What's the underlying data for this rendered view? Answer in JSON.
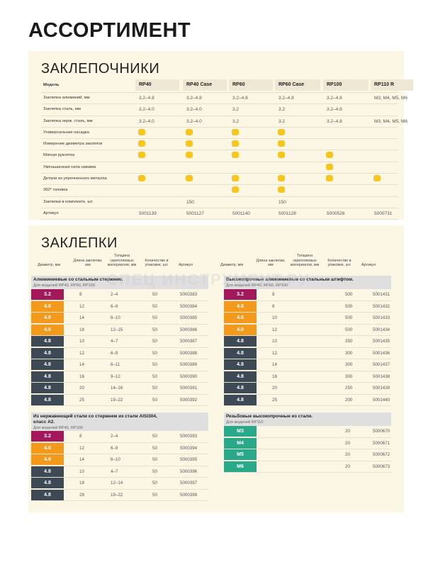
{
  "page_title": "АССОРТИМЕНТ",
  "riveters": {
    "title": "ЗАКЛЕПОЧНИКИ",
    "header_label": "Модель",
    "models": [
      "RP40",
      "RP40 Case",
      "RP60",
      "RP60 Case",
      "RP100",
      "RP110 R"
    ],
    "rows": [
      {
        "label": "Заклепка алюминий, мм",
        "values": [
          "3.2–4.8",
          "3.2–4.8",
          "3.2–4.8",
          "3.2–4.8",
          "3.2–4.8",
          "M3, M4, M5, M6"
        ]
      },
      {
        "label": "Заклепка сталь, мм",
        "values": [
          "3.2–4.0",
          "3.2–4.0",
          "3.2",
          "3.2",
          "3.2–4.8",
          ""
        ]
      },
      {
        "label": "Заклепка нерж. сталь, мм",
        "values": [
          "3.2–4.0",
          "3.2–4.0",
          "3.2",
          "3.2",
          "3.2–4.8",
          "M3, M4, M5, M6"
        ]
      },
      {
        "label": "Универсальная насадка",
        "dots": [
          true,
          true,
          true,
          true,
          false,
          false
        ]
      },
      {
        "label": "Измерение диаметра заклепок",
        "dots": [
          true,
          true,
          true,
          true,
          false,
          false
        ]
      },
      {
        "label": "Мягкая рукоятка",
        "dots": [
          true,
          true,
          true,
          true,
          true,
          false
        ]
      },
      {
        "label": "Уменьшенная сила нажима",
        "dots": [
          false,
          false,
          false,
          false,
          true,
          false
        ]
      },
      {
        "label": "Детали из упрочненного металла",
        "dots": [
          true,
          true,
          true,
          true,
          true,
          true
        ]
      },
      {
        "label": "360° головка",
        "dots": [
          false,
          false,
          true,
          true,
          false,
          false
        ]
      },
      {
        "label": "Заклепки в комплекте, шт.",
        "values": [
          "",
          "150",
          "",
          "150",
          "",
          ""
        ]
      },
      {
        "label": "Артикул",
        "values": [
          "5001139",
          "5001127",
          "5001140",
          "5001128",
          "5000526",
          "5000731"
        ]
      }
    ],
    "dot_color": "#f8c51e"
  },
  "rivets": {
    "title": "ЗАКЛЕПКИ",
    "headers": [
      "Диаметр, мм",
      "Длина заклепки, мм",
      "Толщина скрепляемых материалов, мм",
      "Количество в упаковке, шт.",
      "Артикул"
    ],
    "headers_right": [
      "Диаметр, мм",
      "Длина заклепки, мм",
      "Толщина скрепляемых материалов, мм",
      "Количество в упаковке, шт.",
      "Артикул"
    ],
    "colors": {
      "3.2": "#a3185a",
      "4.0": "#f39a1d",
      "4.8": "#3d4a55",
      "thread": "#2aa88a"
    },
    "left_top": {
      "title": "Алюминиевые со стальным стержнем.",
      "subtitle": "Для моделей RP40, RP60, RP100",
      "rows": [
        [
          "3.2",
          "8",
          "2–4",
          "50",
          "5000383"
        ],
        [
          "4.0",
          "12",
          "6–9",
          "50",
          "5000384"
        ],
        [
          "4.0",
          "14",
          "8–10",
          "50",
          "5000385"
        ],
        [
          "4.0",
          "18",
          "12–15",
          "50",
          "5000386"
        ],
        [
          "4.8",
          "10",
          "4–7",
          "50",
          "5000387"
        ],
        [
          "4.8",
          "12",
          "6–9",
          "50",
          "5000388"
        ],
        [
          "4.8",
          "14",
          "8–11",
          "50",
          "5000389"
        ],
        [
          "4.8",
          "16",
          "9–12",
          "50",
          "5000390"
        ],
        [
          "4.8",
          "20",
          "14–16",
          "50",
          "5000391"
        ],
        [
          "4.8",
          "25",
          "19–22",
          "50",
          "5000392"
        ]
      ]
    },
    "right_top": {
      "title": "Высокопрочные алюминиевые со стальным штифтом.",
      "subtitle": "Для моделей RP40, RP60, RP100",
      "rows": [
        [
          "3.2",
          "8",
          "",
          "500",
          "5001431"
        ],
        [
          "4.0",
          "8",
          "",
          "500",
          "5001432"
        ],
        [
          "4.0",
          "10",
          "",
          "500",
          "5001433"
        ],
        [
          "4.0",
          "12",
          "",
          "500",
          "5001434"
        ],
        [
          "4.8",
          "10",
          "",
          "350",
          "5001435"
        ],
        [
          "4.8",
          "12",
          "",
          "300",
          "5001436"
        ],
        [
          "4.8",
          "14",
          "",
          "300",
          "5001437"
        ],
        [
          "4.8",
          "16",
          "",
          "300",
          "5001438"
        ],
        [
          "4.8",
          "20",
          "",
          "250",
          "5001439"
        ],
        [
          "4.8",
          "25",
          "",
          "200",
          "5001440"
        ]
      ]
    },
    "left_bottom": {
      "title": "Из нержавеющей стали со стержнем из стали AISI304,",
      "title2": "класс А2.",
      "subtitle": "Для моделей RP40, RP100",
      "rows": [
        [
          "3.2",
          "8",
          "2–4",
          "50",
          "5000393"
        ],
        [
          "4.0",
          "12",
          "6–9",
          "50",
          "5000394"
        ],
        [
          "4.0",
          "14",
          "8–10",
          "50",
          "5000395"
        ],
        [
          "4.8",
          "10",
          "4–7",
          "50",
          "5000396"
        ],
        [
          "4.8",
          "18",
          "12–14",
          "50",
          "5000397"
        ],
        [
          "4.8",
          "28",
          "19–22",
          "50",
          "5000398"
        ]
      ]
    },
    "right_bottom": {
      "title": "Резьбовые высокопрочные из стали.",
      "subtitle": "Для моделей RP110",
      "rows": [
        [
          "M3",
          "",
          "",
          "20",
          "5000670"
        ],
        [
          "M4",
          "",
          "",
          "20",
          "5000671"
        ],
        [
          "M5",
          "",
          "",
          "20",
          "5000672"
        ],
        [
          "M6",
          "",
          "",
          "20",
          "5000673"
        ]
      ]
    }
  },
  "watermark": "СПЕЦ ИНСТРУМЕНТ.РУ"
}
